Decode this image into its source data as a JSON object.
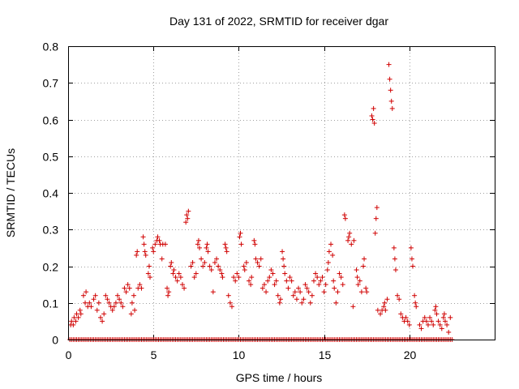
{
  "chart_data": {
    "type": "scatter",
    "title": "Day 131 of 2022, SRMTID for receiver dgar",
    "xlabel": "GPS time / hours",
    "ylabel": "SRMTID / TECUs",
    "xlim": [
      0,
      25
    ],
    "ylim": [
      0,
      0.8
    ],
    "x_ticks": [
      0,
      5,
      10,
      15,
      20
    ],
    "x_tick_labels": [
      "0",
      "5",
      "10",
      "15",
      "20"
    ],
    "y_ticks": [
      0,
      0.1,
      0.2,
      0.3,
      0.4,
      0.5,
      0.6,
      0.7,
      0.8
    ],
    "y_tick_labels": [
      "0",
      "0.1",
      "0.2",
      "0.3",
      "0.4",
      "0.5",
      "0.6",
      "0.7",
      "0.8"
    ],
    "grid": true,
    "marker": "+",
    "color": "#d00000",
    "series": [
      {
        "name": "SRMTID",
        "points": [
          [
            0.15,
            0.04
          ],
          [
            0.2,
            0.05
          ],
          [
            0.3,
            0.04
          ],
          [
            0.35,
            0.06
          ],
          [
            0.45,
            0.05
          ],
          [
            0.5,
            0.07
          ],
          [
            0.6,
            0.06
          ],
          [
            0.7,
            0.08
          ],
          [
            0.75,
            0.07
          ],
          [
            0.9,
            0.12
          ],
          [
            1.0,
            0.1
          ],
          [
            1.05,
            0.13
          ],
          [
            1.15,
            0.09
          ],
          [
            1.25,
            0.1
          ],
          [
            1.35,
            0.09
          ],
          [
            1.5,
            0.11
          ],
          [
            1.6,
            0.12
          ],
          [
            1.7,
            0.08
          ],
          [
            1.8,
            0.1
          ],
          [
            1.9,
            0.06
          ],
          [
            2.0,
            0.05
          ],
          [
            2.1,
            0.07
          ],
          [
            2.2,
            0.12
          ],
          [
            2.3,
            0.11
          ],
          [
            2.4,
            0.1
          ],
          [
            2.5,
            0.09
          ],
          [
            2.6,
            0.08
          ],
          [
            2.7,
            0.09
          ],
          [
            2.8,
            0.1
          ],
          [
            2.9,
            0.12
          ],
          [
            3.0,
            0.11
          ],
          [
            3.1,
            0.1
          ],
          [
            3.2,
            0.09
          ],
          [
            3.3,
            0.14
          ],
          [
            3.4,
            0.13
          ],
          [
            3.5,
            0.15
          ],
          [
            3.6,
            0.14
          ],
          [
            3.7,
            0.07
          ],
          [
            3.75,
            0.1
          ],
          [
            3.85,
            0.12
          ],
          [
            3.9,
            0.08
          ],
          [
            4.0,
            0.23
          ],
          [
            4.05,
            0.24
          ],
          [
            4.1,
            0.14
          ],
          [
            4.2,
            0.15
          ],
          [
            4.3,
            0.14
          ],
          [
            4.4,
            0.28
          ],
          [
            4.45,
            0.26
          ],
          [
            4.5,
            0.24
          ],
          [
            4.55,
            0.23
          ],
          [
            4.7,
            0.18
          ],
          [
            4.75,
            0.2
          ],
          [
            4.8,
            0.17
          ],
          [
            4.95,
            0.25
          ],
          [
            5.0,
            0.24
          ],
          [
            5.1,
            0.26
          ],
          [
            5.2,
            0.27
          ],
          [
            5.25,
            0.28
          ],
          [
            5.35,
            0.27
          ],
          [
            5.4,
            0.26
          ],
          [
            5.5,
            0.22
          ],
          [
            5.55,
            0.26
          ],
          [
            5.7,
            0.26
          ],
          [
            5.8,
            0.14
          ],
          [
            5.85,
            0.12
          ],
          [
            5.9,
            0.13
          ],
          [
            6.0,
            0.2
          ],
          [
            6.05,
            0.21
          ],
          [
            6.15,
            0.18
          ],
          [
            6.2,
            0.19
          ],
          [
            6.3,
            0.17
          ],
          [
            6.4,
            0.16
          ],
          [
            6.5,
            0.18
          ],
          [
            6.6,
            0.17
          ],
          [
            6.7,
            0.15
          ],
          [
            6.8,
            0.14
          ],
          [
            6.9,
            0.32
          ],
          [
            6.95,
            0.34
          ],
          [
            7.0,
            0.33
          ],
          [
            7.05,
            0.35
          ],
          [
            7.2,
            0.2
          ],
          [
            7.3,
            0.21
          ],
          [
            7.4,
            0.17
          ],
          [
            7.5,
            0.18
          ],
          [
            7.6,
            0.26
          ],
          [
            7.65,
            0.27
          ],
          [
            7.7,
            0.25
          ],
          [
            7.8,
            0.22
          ],
          [
            7.9,
            0.2
          ],
          [
            8.0,
            0.21
          ],
          [
            8.1,
            0.25
          ],
          [
            8.15,
            0.26
          ],
          [
            8.2,
            0.24
          ],
          [
            8.3,
            0.2
          ],
          [
            8.4,
            0.19
          ],
          [
            8.5,
            0.13
          ],
          [
            8.6,
            0.21
          ],
          [
            8.7,
            0.22
          ],
          [
            8.8,
            0.2
          ],
          [
            8.9,
            0.19
          ],
          [
            9.0,
            0.18
          ],
          [
            9.05,
            0.17
          ],
          [
            9.2,
            0.26
          ],
          [
            9.25,
            0.25
          ],
          [
            9.3,
            0.24
          ],
          [
            9.4,
            0.12
          ],
          [
            9.5,
            0.1
          ],
          [
            9.6,
            0.09
          ],
          [
            9.7,
            0.17
          ],
          [
            9.8,
            0.16
          ],
          [
            9.9,
            0.18
          ],
          [
            10.0,
            0.17
          ],
          [
            10.05,
            0.28
          ],
          [
            10.1,
            0.29
          ],
          [
            10.15,
            0.26
          ],
          [
            10.3,
            0.2
          ],
          [
            10.35,
            0.19
          ],
          [
            10.45,
            0.21
          ],
          [
            10.6,
            0.16
          ],
          [
            10.7,
            0.15
          ],
          [
            10.75,
            0.17
          ],
          [
            10.9,
            0.27
          ],
          [
            10.95,
            0.26
          ],
          [
            11.0,
            0.22
          ],
          [
            11.1,
            0.21
          ],
          [
            11.2,
            0.2
          ],
          [
            11.3,
            0.22
          ],
          [
            11.4,
            0.14
          ],
          [
            11.5,
            0.15
          ],
          [
            11.6,
            0.13
          ],
          [
            11.7,
            0.16
          ],
          [
            11.8,
            0.17
          ],
          [
            11.9,
            0.19
          ],
          [
            12.0,
            0.18
          ],
          [
            12.1,
            0.15
          ],
          [
            12.2,
            0.16
          ],
          [
            12.3,
            0.12
          ],
          [
            12.4,
            0.1
          ],
          [
            12.45,
            0.11
          ],
          [
            12.55,
            0.24
          ],
          [
            12.6,
            0.22
          ],
          [
            12.65,
            0.2
          ],
          [
            12.7,
            0.18
          ],
          [
            12.8,
            0.16
          ],
          [
            12.9,
            0.14
          ],
          [
            13.0,
            0.17
          ],
          [
            13.1,
            0.16
          ],
          [
            13.2,
            0.12
          ],
          [
            13.3,
            0.13
          ],
          [
            13.4,
            0.11
          ],
          [
            13.5,
            0.14
          ],
          [
            13.6,
            0.13
          ],
          [
            13.7,
            0.1
          ],
          [
            13.8,
            0.11
          ],
          [
            13.9,
            0.15
          ],
          [
            14.0,
            0.14
          ],
          [
            14.1,
            0.13
          ],
          [
            14.2,
            0.1
          ],
          [
            14.3,
            0.12
          ],
          [
            14.4,
            0.16
          ],
          [
            14.5,
            0.18
          ],
          [
            14.6,
            0.17
          ],
          [
            14.7,
            0.15
          ],
          [
            14.8,
            0.16
          ],
          [
            14.9,
            0.17
          ],
          [
            15.0,
            0.13
          ],
          [
            15.1,
            0.15
          ],
          [
            15.2,
            0.19
          ],
          [
            15.25,
            0.21
          ],
          [
            15.3,
            0.24
          ],
          [
            15.4,
            0.26
          ],
          [
            15.5,
            0.23
          ],
          [
            15.55,
            0.16
          ],
          [
            15.6,
            0.14
          ],
          [
            15.7,
            0.1
          ],
          [
            15.8,
            0.13
          ],
          [
            15.9,
            0.18
          ],
          [
            16.0,
            0.17
          ],
          [
            16.1,
            0.15
          ],
          [
            16.2,
            0.34
          ],
          [
            16.25,
            0.33
          ],
          [
            16.4,
            0.27
          ],
          [
            16.45,
            0.28
          ],
          [
            16.5,
            0.29
          ],
          [
            16.6,
            0.26
          ],
          [
            16.7,
            0.09
          ],
          [
            16.75,
            0.27
          ],
          [
            16.9,
            0.19
          ],
          [
            16.95,
            0.17
          ],
          [
            17.0,
            0.15
          ],
          [
            17.1,
            0.16
          ],
          [
            17.2,
            0.13
          ],
          [
            17.3,
            0.2
          ],
          [
            17.35,
            0.22
          ],
          [
            17.45,
            0.14
          ],
          [
            17.5,
            0.13
          ],
          [
            17.8,
            0.61
          ],
          [
            17.85,
            0.6
          ],
          [
            17.9,
            0.63
          ],
          [
            17.95,
            0.59
          ],
          [
            18.0,
            0.29
          ],
          [
            18.05,
            0.33
          ],
          [
            18.1,
            0.36
          ],
          [
            18.15,
            0.08
          ],
          [
            18.3,
            0.07
          ],
          [
            18.4,
            0.08
          ],
          [
            18.5,
            0.09
          ],
          [
            18.55,
            0.1
          ],
          [
            18.6,
            0.08
          ],
          [
            18.7,
            0.11
          ],
          [
            18.8,
            0.75
          ],
          [
            18.85,
            0.71
          ],
          [
            18.9,
            0.68
          ],
          [
            18.95,
            0.65
          ],
          [
            19.0,
            0.63
          ],
          [
            19.1,
            0.25
          ],
          [
            19.15,
            0.22
          ],
          [
            19.2,
            0.19
          ],
          [
            19.3,
            0.12
          ],
          [
            19.4,
            0.11
          ],
          [
            19.5,
            0.07
          ],
          [
            19.6,
            0.06
          ],
          [
            19.7,
            0.05
          ],
          [
            19.8,
            0.06
          ],
          [
            19.9,
            0.05
          ],
          [
            20.0,
            0.04
          ],
          [
            20.1,
            0.25
          ],
          [
            20.15,
            0.22
          ],
          [
            20.2,
            0.2
          ],
          [
            20.3,
            0.12
          ],
          [
            20.35,
            0.1
          ],
          [
            20.4,
            0.09
          ],
          [
            20.6,
            0.04
          ],
          [
            20.7,
            0.03
          ],
          [
            20.8,
            0.05
          ],
          [
            20.9,
            0.06
          ],
          [
            21.0,
            0.05
          ],
          [
            21.1,
            0.04
          ],
          [
            21.2,
            0.06
          ],
          [
            21.3,
            0.05
          ],
          [
            21.4,
            0.04
          ],
          [
            21.5,
            0.08
          ],
          [
            21.55,
            0.09
          ],
          [
            21.6,
            0.07
          ],
          [
            21.7,
            0.05
          ],
          [
            21.8,
            0.04
          ],
          [
            21.9,
            0.03
          ],
          [
            22.0,
            0.06
          ],
          [
            22.05,
            0.07
          ],
          [
            22.1,
            0.05
          ],
          [
            22.2,
            0.04
          ],
          [
            22.3,
            0.02
          ],
          [
            22.4,
            0.06
          ]
        ]
      }
    ],
    "baseline": {
      "value": 0,
      "x_start": 0.1,
      "x_end": 22.5,
      "step": 0.1
    }
  }
}
